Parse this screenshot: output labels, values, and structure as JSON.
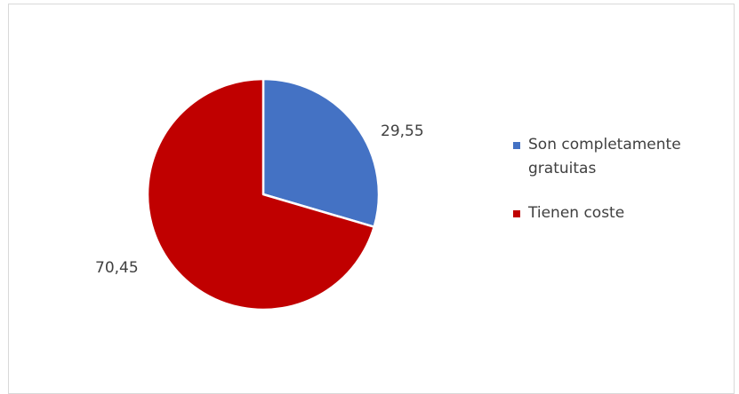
{
  "chart_data": {
    "type": "pie",
    "title": "",
    "start_angle_deg": 0,
    "direction": "clockwise",
    "slices": [
      {
        "label": "Son completamente gratuitas",
        "value": 29.55,
        "value_label": "29,55",
        "color": "#4472C4"
      },
      {
        "label": "Tienen coste",
        "value": 70.45,
        "value_label": "70,45",
        "color": "#C00000"
      }
    ],
    "legend": {
      "position": "right",
      "entries": [
        {
          "label": "Son completamente gratuitas",
          "color": "#4472C4"
        },
        {
          "label": "Tienen coste",
          "color": "#C00000"
        }
      ]
    }
  }
}
